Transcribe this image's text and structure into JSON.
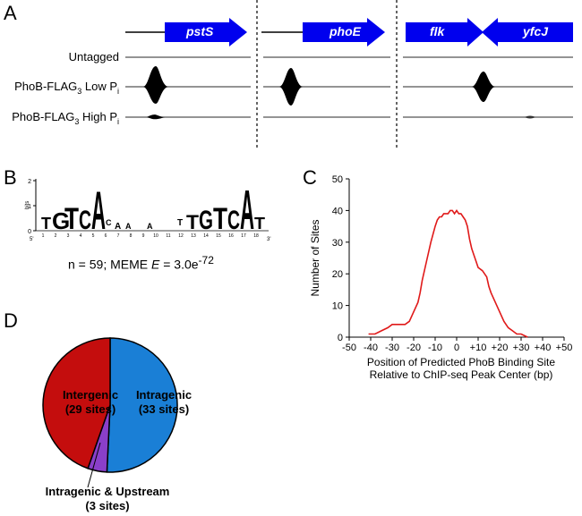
{
  "panels": {
    "a": {
      "letter": "A",
      "genes": [
        "pstS",
        "phoE",
        "flk",
        "yfcJ"
      ],
      "tracks": [
        {
          "label": "Untagged",
          "sub": "",
          "tail": ""
        },
        {
          "label": "PhoB-FLAG",
          "sub": "3",
          "tail": " Low P",
          "tail_sub": "i"
        },
        {
          "label": "PhoB-FLAG",
          "sub": "3",
          "tail": " High P",
          "tail_sub": "i"
        }
      ]
    },
    "b": {
      "letter": "B",
      "logo_axis_label": "bits",
      "logo_ticks": [
        "2",
        "1",
        "0"
      ],
      "logo_positions": [
        "1",
        "2",
        "3",
        "4",
        "5",
        "6",
        "7",
        "8",
        "9",
        "10",
        "11",
        "12",
        "13",
        "14",
        "15",
        "16",
        "17",
        "18"
      ],
      "end5": "5'",
      "end3": "3'",
      "caption_prefix": "n = 59; MEME ",
      "caption_e": "E",
      "caption_value": " = 3.0e",
      "caption_exp": "-72"
    },
    "c": {
      "letter": "C"
    },
    "d": {
      "letter": "D",
      "slices": [
        {
          "label": "Intragenic",
          "count": "(33 sites)",
          "value": 33,
          "color": "#1a7fd6"
        },
        {
          "label": "Intragenic & Upstream",
          "count": "(3 sites)",
          "value": 3,
          "color": "#8a3fc9"
        },
        {
          "label": "Intergenic",
          "count": "(29 sites)",
          "value": 29,
          "color": "#c40d0d"
        }
      ]
    }
  },
  "chart_data": {
    "type": "line",
    "xlabel": "Position of Predicted PhoB Binding Site",
    "xlabel2": "Relative to ChIP-seq Peak Center (bp)",
    "ylabel": "Number of Sites",
    "xlim": [
      -50,
      50
    ],
    "ylim": [
      0,
      50
    ],
    "xticks": [
      "-50",
      "-40",
      "-30",
      "-20",
      "-10",
      "0",
      "+10",
      "+20",
      "+30",
      "+40",
      "+50"
    ],
    "yticks": [
      "0",
      "10",
      "20",
      "30",
      "40",
      "50"
    ],
    "color": "#e01a1a",
    "x": [
      -41,
      -38,
      -35,
      -32,
      -30,
      -28,
      -26,
      -24,
      -22,
      -20,
      -18,
      -17,
      -16,
      -14,
      -12,
      -10,
      -9,
      -8,
      -7,
      -6,
      -5,
      -4,
      -3,
      -2,
      -1,
      0,
      1,
      2,
      3,
      4,
      5,
      6,
      7,
      8,
      9,
      10,
      12,
      14,
      15,
      16,
      18,
      20,
      22,
      24,
      26,
      28,
      30,
      33
    ],
    "y": [
      1,
      1,
      2,
      3,
      4,
      4,
      4,
      4,
      5,
      8,
      11,
      14,
      18,
      24,
      30,
      35,
      37,
      38,
      38,
      39,
      39,
      39,
      40,
      40,
      39,
      40,
      39,
      39,
      38,
      37,
      35,
      31,
      28,
      26,
      24,
      22,
      21,
      19,
      16,
      14,
      11,
      8,
      5,
      3,
      2,
      1,
      1,
      0
    ]
  }
}
